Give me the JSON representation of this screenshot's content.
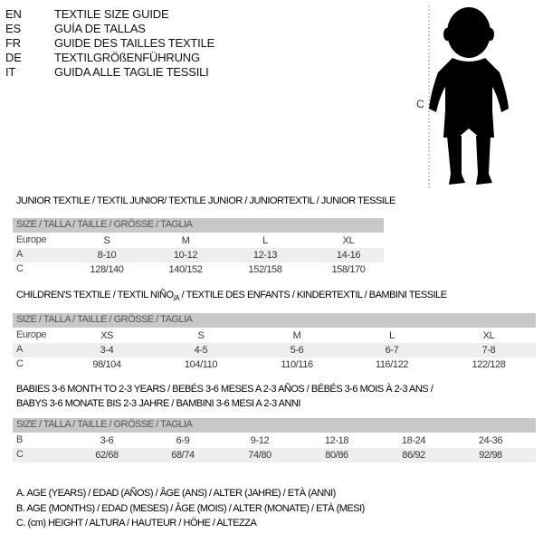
{
  "languages": [
    {
      "code": "EN",
      "title": "TEXTILE SIZE GUIDE"
    },
    {
      "code": "ES",
      "title": "GUÍA DE TALLAS"
    },
    {
      "code": "FR",
      "title": "GUIDE DES TAILLES TEXTILE"
    },
    {
      "code": "DE",
      "title": "TEXTILGRÖßENFÜHRUNG"
    },
    {
      "code": "IT",
      "title": "GUIDA ALLE TAGLIE TESSILI"
    }
  ],
  "figure": {
    "height_label": "C",
    "icon": "child-silhouette"
  },
  "size_header": "SIZE / TALLA / TAILLE / GRÖSSE / TAGLIA",
  "junior": {
    "title": "JUNIOR TEXTILE / TEXTIL JUNIOR/ TEXTILE JUNIOR / JUNIORTEXTIL / JUNIOR TESSILE",
    "rows": [
      {
        "label": "Europe",
        "values": [
          "S",
          "M",
          "L",
          "XL"
        ]
      },
      {
        "label": "A",
        "values": [
          "8-10",
          "10-12",
          "12-13",
          "14-16"
        ]
      },
      {
        "label": "C",
        "values": [
          "128/140",
          "140/152",
          "152/158",
          "158/170"
        ]
      }
    ]
  },
  "children": {
    "title_main": "CHILDREN'S TEXTILE / TEXTIL NIÑO",
    "title_sub": "/A",
    "title_rest": " / TEXTILE DES ENFANTS / KINDERTEXTIL / BAMBINI TESSILE",
    "rows": [
      {
        "label": "Europe",
        "values": [
          "XS",
          "S",
          "M",
          "L",
          "XL"
        ]
      },
      {
        "label": "A",
        "values": [
          "3-4",
          "4-5",
          "5-6",
          "6-7",
          "7-8"
        ]
      },
      {
        "label": "C",
        "values": [
          "98/104",
          "104/110",
          "110/116",
          "116/122",
          "122/128"
        ]
      }
    ]
  },
  "babies": {
    "title_line1": "BABIES 3-6 MONTH TO 2-3 YEARS / BEBÉS 3-6 MESES A 2-3 AÑOS / BÉBÉS 3-6 MOIS À 2-3 ANS /",
    "title_line2": "BABYS 3-6 MONATE BIS 2-3 JAHRE / BAMBINI 3-6 MESI A 2-3 ANNI",
    "rows": [
      {
        "label": "B",
        "values": [
          "3-6",
          "6-9",
          "9-12",
          "12-18",
          "18-24",
          "24-36"
        ]
      },
      {
        "label": "C",
        "values": [
          "62/68",
          "68/74",
          "74/80",
          "80/86",
          "86/92",
          "92/98"
        ]
      }
    ]
  },
  "legend": [
    "A. AGE (YEARS) / EDAD (AÑOS) / ÂGE (ANS) / ALTER (JAHRE) / ETÀ (ANNI)",
    "B. AGE (MONTHS) / EDAD (MESES) / ÂGE (MOIS) / ALTER (MONATE) / ETÀ (MESI)",
    "C. (cm) HEIGHT / ALTURA / HAUTEUR / HÖHE / ALTEZZA"
  ]
}
